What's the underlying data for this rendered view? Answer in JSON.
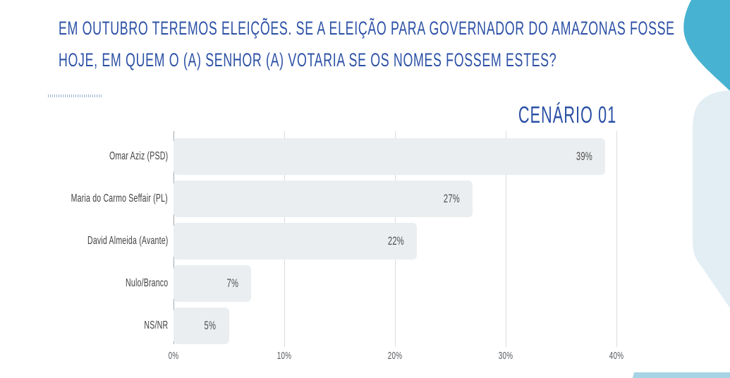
{
  "title": {
    "line1": "EM OUTUBRO TEREMOS ELEIÇÕES. SE A ELEIÇÃO PARA GOVERNADOR DO AMAZONAS FOSSE",
    "line2": "HOJE, EM QUEM O (A) SENHOR (A) VOTARIA SE OS NOMES FOSSEM ESTES?",
    "color": "#2b50a5"
  },
  "scenario_label": "CENÁRIO 01",
  "chart_data": {
    "type": "bar",
    "orientation": "horizontal",
    "title": "CENÁRIO 01",
    "categories": [
      "Omar Aziz (PSD)",
      "Maria do Carmo Seffair (PL)",
      "David Almeida (Avante)",
      "Nulo/Branco",
      "NS/NR"
    ],
    "values": [
      39,
      27,
      22,
      7,
      5
    ],
    "value_labels": [
      "39%",
      "27%",
      "22%",
      "7%",
      "5%"
    ],
    "x_ticks": [
      "0%",
      "10%",
      "20%",
      "30%",
      "40%"
    ],
    "xlim": [
      0,
      40
    ],
    "grid": true,
    "bar_color": "#ebeef0",
    "legend": "none"
  },
  "decor": {
    "teal_blob_color": "#47b2d1",
    "light_blob_color": "#e2eef4",
    "bottom_strip_color": "#a6d4e4"
  }
}
